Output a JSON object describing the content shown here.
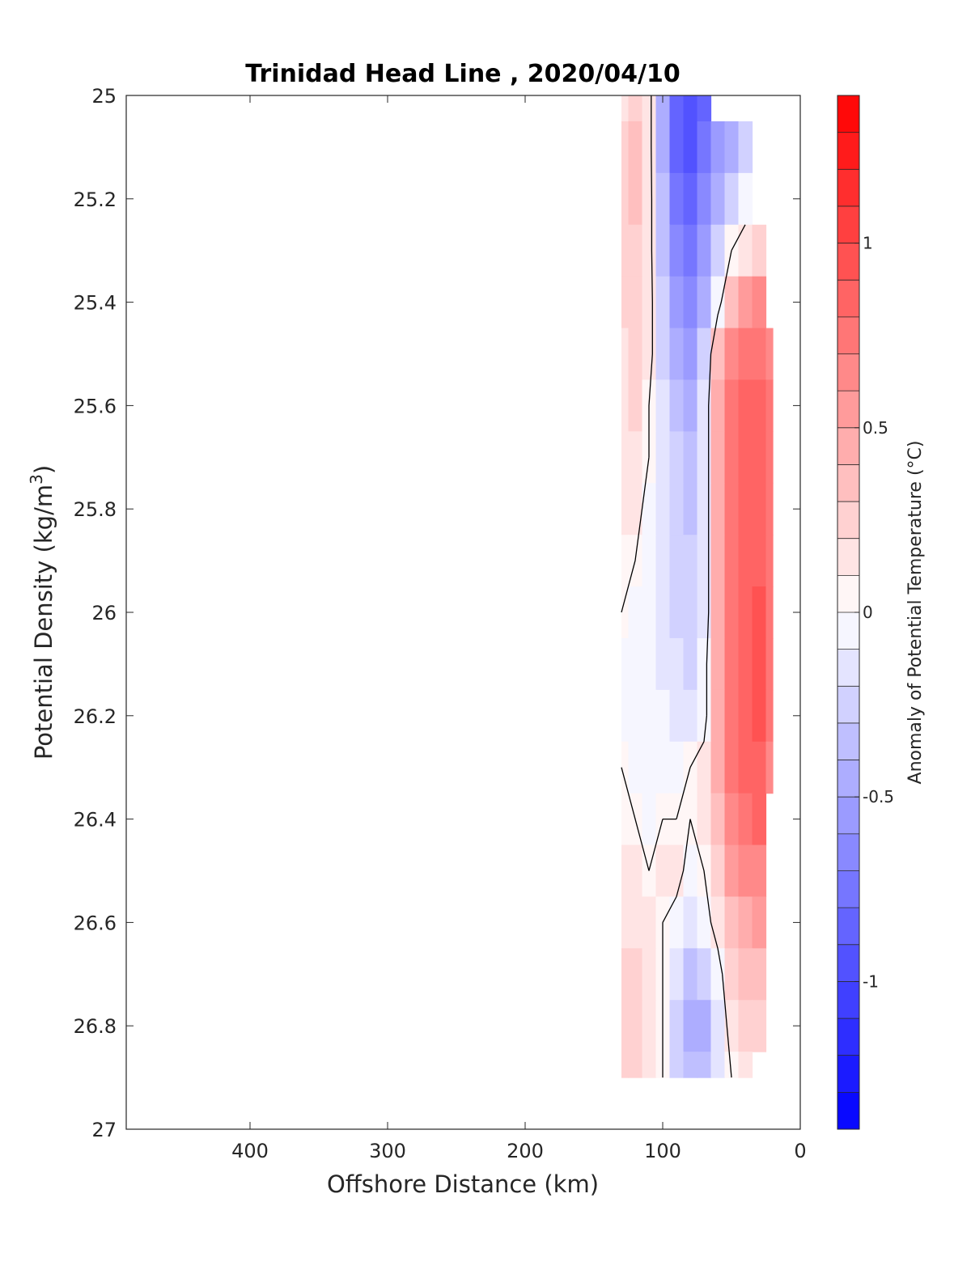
{
  "chart_data": {
    "type": "heatmap",
    "title": "Trinidad Head Line , 2020/04/10",
    "xlabel": "Offshore Distance (km)",
    "ylabel": "Potential Density (kg/m",
    "ylabel_sup": "3",
    "ylabel_close": ")",
    "xlim": [
      490,
      0
    ],
    "ylim": [
      25,
      27
    ],
    "x_reversed": true,
    "y_reversed": true,
    "xticks": [
      400,
      300,
      200,
      100,
      0
    ],
    "xtick_labels": [
      "400",
      "300",
      "200",
      "100",
      "0"
    ],
    "yticks": [
      25,
      25.2,
      25.4,
      25.6,
      25.8,
      26,
      26.2,
      26.4,
      26.6,
      26.8,
      27
    ],
    "ytick_labels": [
      "25",
      "25.2",
      "25.4",
      "25.6",
      "25.8",
      "26",
      "26.2",
      "26.4",
      "26.6",
      "26.8",
      "27"
    ],
    "grid": false,
    "colorbar": {
      "label": "Anomaly of Potential Temperature (°C)",
      "range": [
        -1.4,
        1.4
      ],
      "step": 0.1,
      "ticks": [
        1,
        0.5,
        0,
        -0.5,
        -1
      ],
      "tick_labels": [
        "1",
        "0.5",
        "0",
        "-0.5",
        "-1"
      ],
      "colormap": "blue-white-red",
      "min_color": "#0000ff",
      "max_color": "#ff0000"
    },
    "contour_level": 0,
    "data_extent": {
      "x": [
        20,
        130
      ],
      "y": [
        25,
        26.9
      ]
    },
    "x": [
      130,
      120,
      110,
      100,
      90,
      80,
      70,
      60,
      50,
      40,
      30,
      20
    ],
    "y": [
      25.0,
      25.1,
      25.2,
      25.3,
      25.4,
      25.5,
      25.6,
      25.7,
      25.8,
      25.9,
      26.0,
      26.1,
      26.2,
      26.3,
      26.4,
      26.5,
      26.6,
      26.7,
      26.8,
      26.9
    ],
    "z": [
      [
        0.1,
        0.2,
        0.1,
        -0.5,
        -0.9,
        -1.0,
        -0.9,
        null,
        null,
        null,
        null,
        null
      ],
      [
        0.2,
        0.3,
        0.1,
        -0.5,
        -0.9,
        -1.0,
        -0.8,
        -0.6,
        -0.5,
        -0.3,
        null,
        null
      ],
      [
        0.2,
        0.3,
        0.1,
        -0.4,
        -0.8,
        -0.9,
        -0.7,
        -0.5,
        -0.3,
        -0.1,
        null,
        null
      ],
      [
        0.2,
        0.2,
        0.1,
        -0.4,
        -0.7,
        -0.8,
        -0.6,
        -0.3,
        0.0,
        0.1,
        0.2,
        null
      ],
      [
        0.2,
        0.2,
        0.1,
        -0.3,
        -0.6,
        -0.7,
        -0.5,
        -0.1,
        0.3,
        0.5,
        0.6,
        null
      ],
      [
        0.1,
        0.2,
        0.1,
        -0.3,
        -0.5,
        -0.6,
        -0.3,
        0.3,
        0.6,
        0.7,
        0.7,
        0.6
      ],
      [
        0.1,
        0.2,
        0.0,
        -0.2,
        -0.4,
        -0.5,
        -0.2,
        0.4,
        0.7,
        0.8,
        0.8,
        0.7
      ],
      [
        0.1,
        0.1,
        0.0,
        -0.2,
        -0.3,
        -0.4,
        -0.2,
        0.4,
        0.7,
        0.8,
        0.8,
        0.7
      ],
      [
        0.1,
        0.1,
        -0.1,
        -0.2,
        -0.3,
        -0.4,
        -0.2,
        0.4,
        0.7,
        0.8,
        0.8,
        0.7
      ],
      [
        0.0,
        0.0,
        -0.1,
        -0.2,
        -0.3,
        -0.3,
        -0.2,
        0.4,
        0.7,
        0.8,
        0.8,
        0.7
      ],
      [
        0.0,
        -0.1,
        -0.1,
        -0.2,
        -0.3,
        -0.3,
        -0.2,
        0.4,
        0.7,
        0.8,
        0.9,
        0.7
      ],
      [
        -0.1,
        -0.1,
        -0.1,
        -0.2,
        -0.2,
        -0.3,
        -0.1,
        0.4,
        0.7,
        0.8,
        0.9,
        0.7
      ],
      [
        -0.1,
        -0.1,
        -0.1,
        -0.1,
        -0.2,
        -0.2,
        -0.1,
        0.4,
        0.7,
        0.8,
        0.9,
        0.7
      ],
      [
        0.0,
        -0.1,
        -0.1,
        -0.1,
        -0.1,
        0.0,
        0.1,
        0.4,
        0.7,
        0.8,
        0.8,
        0.6
      ],
      [
        0.0,
        0.0,
        -0.1,
        0.0,
        0.0,
        0.0,
        0.1,
        0.3,
        0.6,
        0.7,
        0.8,
        null
      ],
      [
        0.1,
        0.1,
        0.0,
        0.1,
        0.1,
        -0.1,
        0.0,
        0.2,
        0.5,
        0.6,
        0.6,
        null
      ],
      [
        0.1,
        0.1,
        0.1,
        0.0,
        -0.1,
        -0.2,
        -0.1,
        0.1,
        0.3,
        0.4,
        0.5,
        null
      ],
      [
        0.2,
        0.2,
        0.1,
        0.0,
        -0.2,
        -0.4,
        -0.3,
        -0.1,
        0.2,
        0.3,
        0.3,
        null
      ],
      [
        0.2,
        0.2,
        0.1,
        0.0,
        -0.3,
        -0.5,
        -0.5,
        -0.2,
        0.1,
        0.2,
        0.2,
        null
      ],
      [
        0.2,
        0.2,
        0.1,
        0.0,
        -0.3,
        -0.4,
        -0.4,
        -0.2,
        0.0,
        0.1,
        null,
        null
      ]
    ]
  }
}
